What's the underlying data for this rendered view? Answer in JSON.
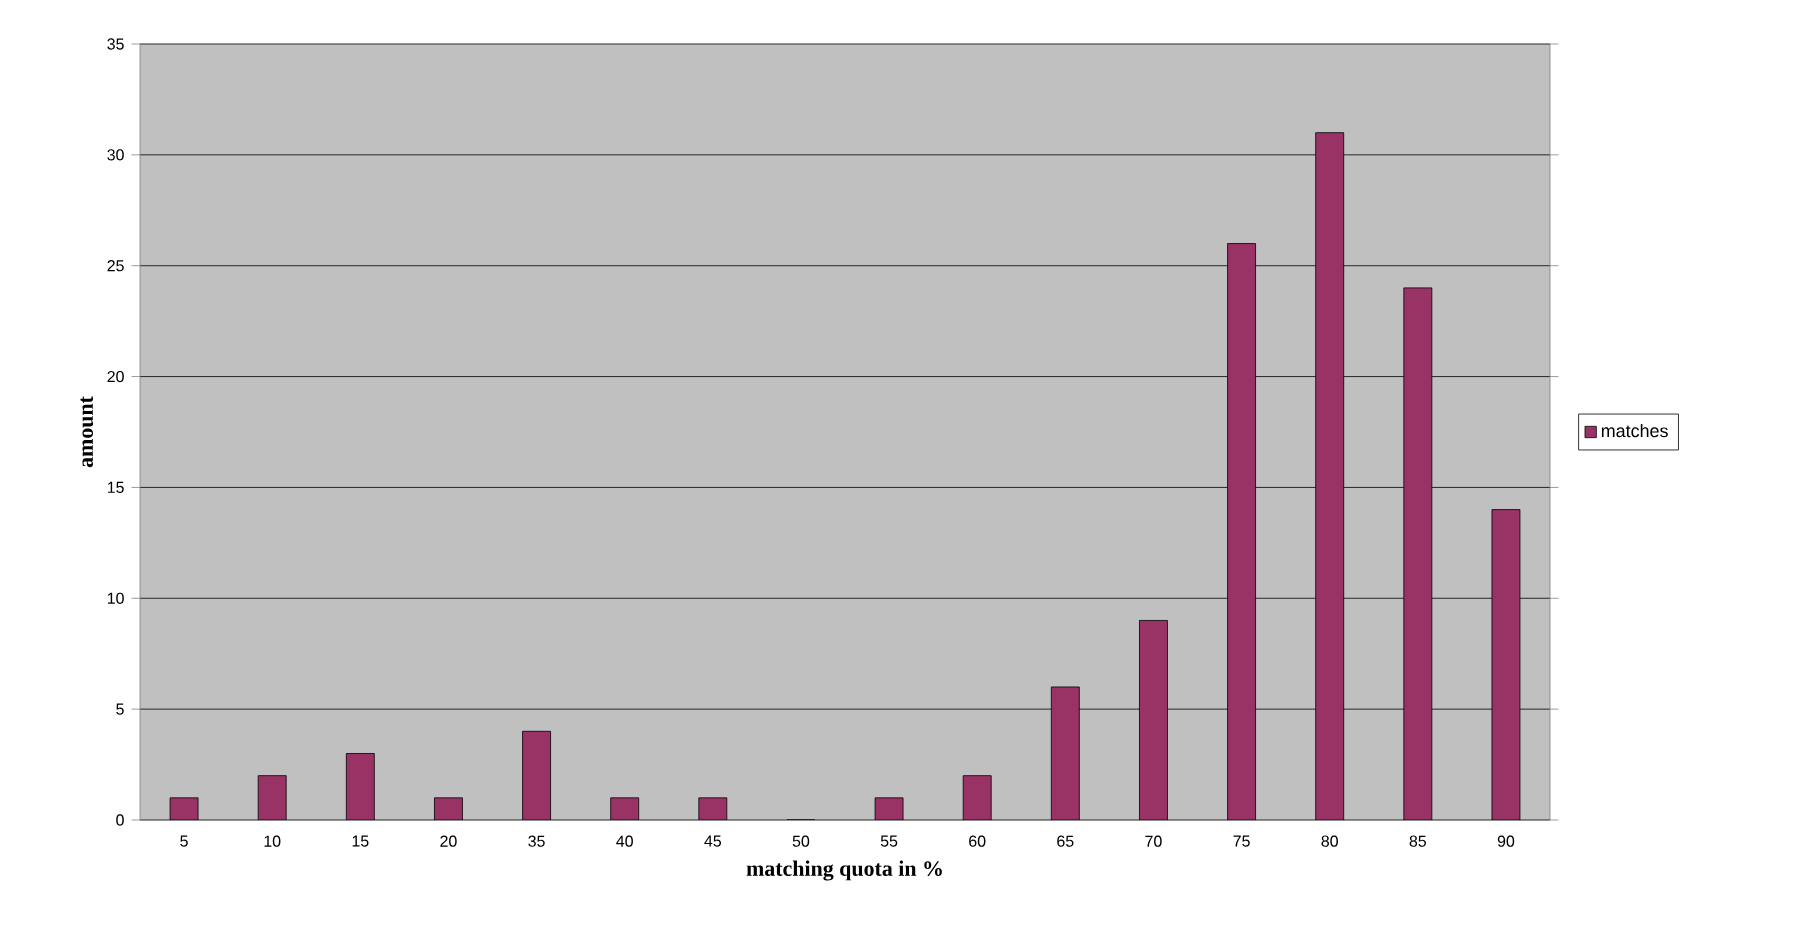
{
  "chart_data": {
    "type": "bar",
    "xlabel": "matching quota in %",
    "ylabel": "amount",
    "categories": [
      "5",
      "10",
      "15",
      "20",
      "35",
      "40",
      "45",
      "50",
      "55",
      "60",
      "65",
      "70",
      "75",
      "80",
      "85",
      "90"
    ],
    "series": [
      {
        "name": "matches",
        "color": "#993366",
        "values": [
          1,
          2,
          3,
          1,
          4,
          1,
          1,
          0,
          1,
          2,
          6,
          9,
          26,
          31,
          24,
          14
        ]
      }
    ],
    "ylim": [
      0,
      35
    ],
    "yticks": [
      0,
      5,
      10,
      15,
      20,
      25,
      30,
      35
    ],
    "grid": "y",
    "legend": "right"
  }
}
